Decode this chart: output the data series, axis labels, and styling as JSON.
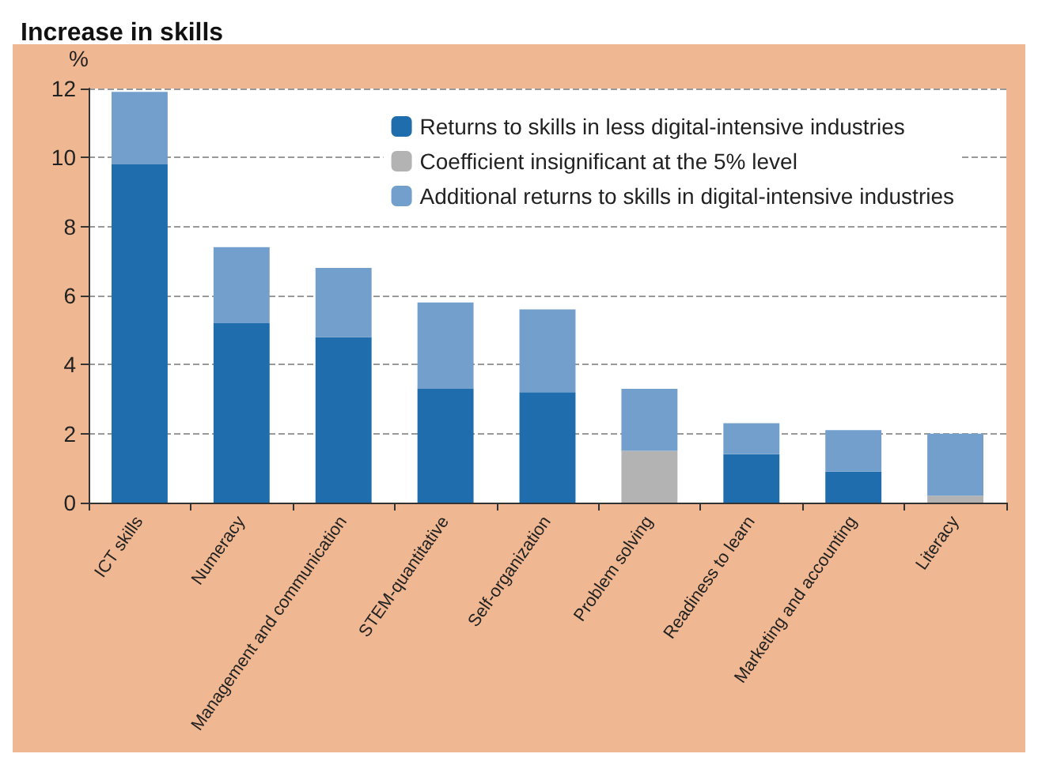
{
  "chart_data": {
    "type": "bar",
    "title": "Increase in skills",
    "ylabel": "%",
    "categories": [
      "ICT skills",
      "Numeracy",
      "Management and communication",
      "STEM-quantitative",
      "Self-organization",
      "Problem solving",
      "Readiness to learn",
      "Marketing and accounting",
      "Literacy"
    ],
    "stacked": true,
    "series": [
      {
        "name": "Returns to skills in less digital-intensive industries",
        "color": "#1f6dad",
        "values": [
          9.8,
          5.2,
          4.8,
          3.3,
          3.2,
          null,
          1.4,
          0.9,
          null
        ]
      },
      {
        "name": "Coefficient insignificant at the 5% level",
        "color": "#b3b3b3",
        "values": [
          null,
          null,
          null,
          null,
          null,
          1.5,
          null,
          null,
          0.2
        ]
      },
      {
        "name": "Additional returns to skills in digital-intensive industries",
        "color": "#729fcc",
        "values": [
          2.1,
          2.2,
          2.0,
          2.5,
          2.4,
          1.8,
          0.9,
          1.2,
          1.8
        ]
      }
    ],
    "ylim": [
      0,
      12
    ],
    "yticks": [
      0,
      2,
      4,
      6,
      8,
      10,
      12
    ],
    "grid": "y",
    "legend": "top right"
  }
}
